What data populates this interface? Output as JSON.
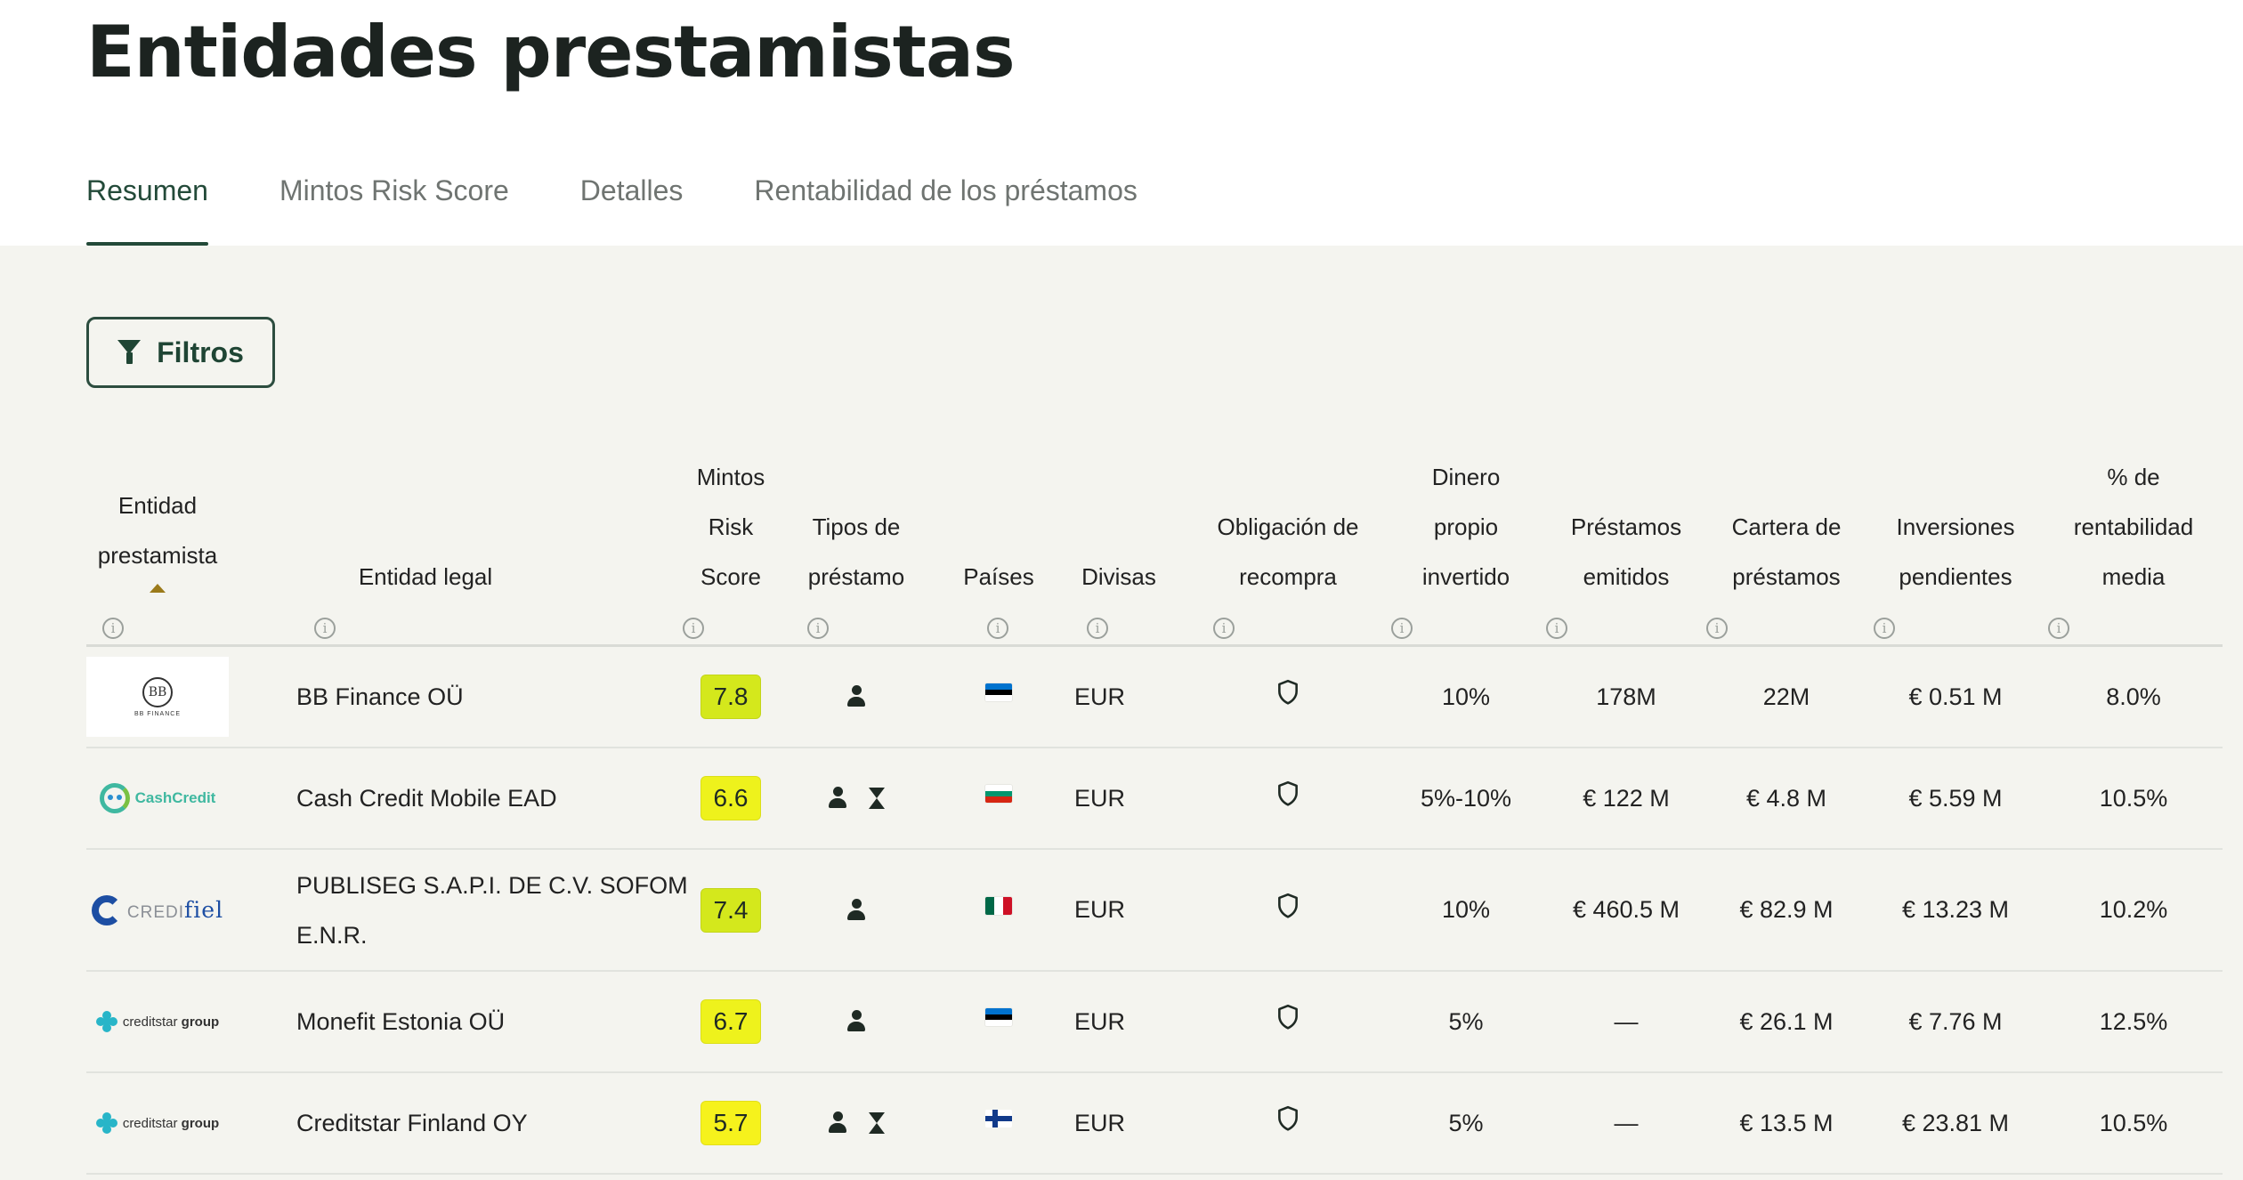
{
  "page": {
    "title": "Entidades prestamistas"
  },
  "tabs": [
    {
      "label": "Resumen",
      "active": true
    },
    {
      "label": "Mintos Risk Score",
      "active": false
    },
    {
      "label": "Detalles",
      "active": false
    },
    {
      "label": "Rentabilidad de los préstamos",
      "active": false
    }
  ],
  "filters": {
    "label": "Filtros",
    "icon": "funnel-icon"
  },
  "table": {
    "headers": [
      {
        "key": "lender",
        "lines": [
          "Entidad",
          "prestamista"
        ]
      },
      {
        "key": "legal",
        "lines": [
          "Entidad legal"
        ]
      },
      {
        "key": "score",
        "lines": [
          "Mintos",
          "Risk",
          "Score"
        ]
      },
      {
        "key": "types",
        "lines": [
          "Tipos de",
          "préstamo"
        ]
      },
      {
        "key": "countries",
        "lines": [
          "Países"
        ]
      },
      {
        "key": "currencies",
        "lines": [
          "Divisas"
        ]
      },
      {
        "key": "buyback",
        "lines": [
          "Obligación de",
          "recompra"
        ]
      },
      {
        "key": "skin",
        "lines": [
          "Dinero",
          "propio",
          "invertido"
        ]
      },
      {
        "key": "issued",
        "lines": [
          "Préstamos",
          "emitidos"
        ]
      },
      {
        "key": "portfolio",
        "lines": [
          "Cartera de",
          "préstamos"
        ]
      },
      {
        "key": "pending",
        "lines": [
          "Inversiones",
          "pendientes"
        ]
      },
      {
        "key": "return",
        "lines": [
          "% de",
          "rentabilidad",
          "media"
        ]
      }
    ],
    "rows": [
      {
        "logo": {
          "type": "bb",
          "mark": "BB",
          "text": "BB FINANCE"
        },
        "legal_lines": [
          "BB Finance OÜ"
        ],
        "score": "7.8",
        "score_color": "#d4e81c",
        "loan_types": [
          "person-icon"
        ],
        "flag": {
          "name": "estonia-flag",
          "colors": [
            "#0072ce",
            "#000000",
            "#ffffff"
          ],
          "layout": "horizontal"
        },
        "currency": "EUR",
        "buyback_icon": "shield-icon",
        "skin": "10%",
        "issued": "178M",
        "portfolio": "22M",
        "pending": "€ 0.51 M",
        "return": "8.0%"
      },
      {
        "logo": {
          "type": "cashcredit",
          "text": "CashCredit"
        },
        "legal_lines": [
          "Cash Credit Mobile EAD"
        ],
        "score": "6.6",
        "score_color": "#eef21c",
        "loan_types": [
          "person-icon",
          "hourglass-icon"
        ],
        "flag": {
          "name": "bulgaria-flag",
          "colors": [
            "#ffffff",
            "#00966e",
            "#d62612"
          ],
          "layout": "horizontal"
        },
        "currency": "EUR",
        "buyback_icon": "shield-icon",
        "skin": "5%-10%",
        "issued": "€ 122 M",
        "portfolio": "€ 4.8 M",
        "pending": "€ 5.59 M",
        "return": "10.5%"
      },
      {
        "logo": {
          "type": "credifiel",
          "text_a": "CREDI",
          "text_b": "fiel"
        },
        "legal_lines": [
          "PUBLISEG S.A.P.I. DE C.V. SOFOM",
          "E.N.R."
        ],
        "score": "7.4",
        "score_color": "#d4e81c",
        "loan_types": [
          "person-icon"
        ],
        "flag": {
          "name": "mexico-flag",
          "colors": [
            "#006847",
            "#ffffff",
            "#ce1126"
          ],
          "layout": "vertical"
        },
        "currency": "EUR",
        "buyback_icon": "shield-icon",
        "skin": "10%",
        "issued": "€ 460.5 M",
        "portfolio": "€ 82.9 M",
        "pending": "€ 13.23 M",
        "return": "10.2%"
      },
      {
        "logo": {
          "type": "creditstar",
          "text_a": "creditstar",
          "text_b": "group"
        },
        "legal_lines": [
          "Monefit Estonia OÜ"
        ],
        "score": "6.7",
        "score_color": "#eef21c",
        "loan_types": [
          "person-icon"
        ],
        "flag": {
          "name": "estonia-flag",
          "colors": [
            "#0072ce",
            "#000000",
            "#ffffff"
          ],
          "layout": "horizontal"
        },
        "currency": "EUR",
        "buyback_icon": "shield-icon",
        "skin": "5%",
        "issued": "—",
        "portfolio": "€ 26.1 M",
        "pending": "€ 7.76 M",
        "return": "12.5%"
      },
      {
        "logo": {
          "type": "creditstar",
          "text_a": "creditstar",
          "text_b": "group"
        },
        "legal_lines": [
          "Creditstar Finland OY"
        ],
        "score": "5.7",
        "score_color": "#f6f21c",
        "loan_types": [
          "person-icon",
          "hourglass-icon"
        ],
        "flag": {
          "name": "finland-flag",
          "layout": "cross"
        },
        "currency": "EUR",
        "buyback_icon": "shield-icon",
        "skin": "5%",
        "issued": "—",
        "portfolio": "€ 13.5 M",
        "pending": "€ 23.81 M",
        "return": "10.5%"
      }
    ]
  }
}
